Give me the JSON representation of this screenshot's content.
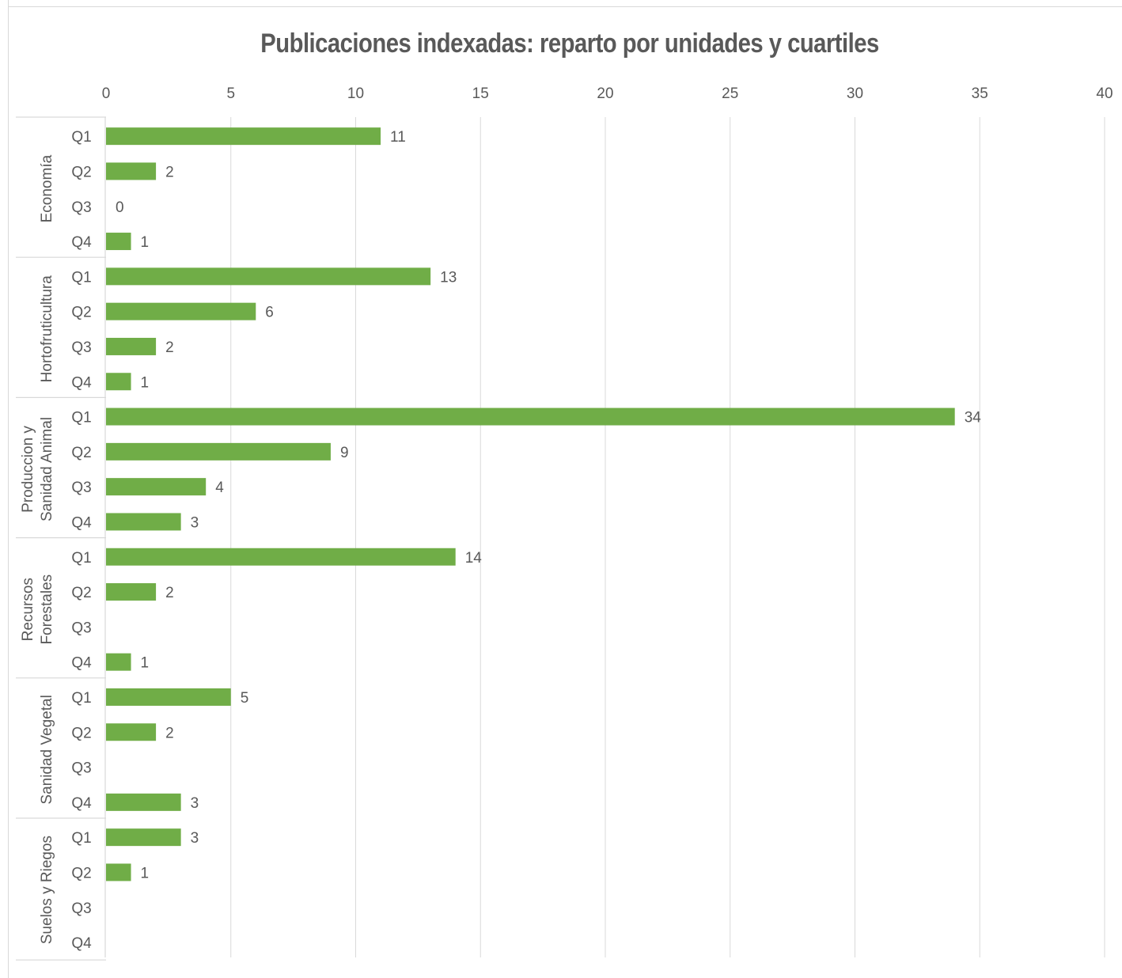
{
  "chart_data": {
    "type": "bar",
    "orientation": "horizontal",
    "title": "Publicaciones indexadas: reparto por unidades y cuartiles",
    "xlim": [
      0,
      40
    ],
    "x_ticks": [
      0,
      5,
      10,
      15,
      20,
      25,
      30,
      35,
      40
    ],
    "x_axis_position": "top",
    "grid": true,
    "legend": "none",
    "bar_color": "#70ad47",
    "groups": [
      {
        "name": "Economía",
        "label_lines": [
          "Economía"
        ],
        "categories": [
          "Q1",
          "Q2",
          "Q3",
          "Q4"
        ],
        "values": [
          11,
          2,
          0,
          1
        ],
        "labels": [
          "11",
          "2",
          "0",
          "1"
        ]
      },
      {
        "name": "Hortofruticultura",
        "label_lines": [
          "Hortofruticultura"
        ],
        "categories": [
          "Q1",
          "Q2",
          "Q3",
          "Q4"
        ],
        "values": [
          13,
          6,
          2,
          1
        ],
        "labels": [
          "13",
          "6",
          "2",
          "1"
        ]
      },
      {
        "name": "Produccion y Sanidad Animal",
        "label_lines": [
          "Produccion y",
          "Sanidad Animal"
        ],
        "categories": [
          "Q1",
          "Q2",
          "Q3",
          "Q4"
        ],
        "values": [
          34,
          9,
          4,
          3
        ],
        "labels": [
          "34",
          "9",
          "4",
          "3"
        ]
      },
      {
        "name": "Recursos Forestales",
        "label_lines": [
          "Recursos",
          "Forestales"
        ],
        "categories": [
          "Q1",
          "Q2",
          "Q3",
          "Q4"
        ],
        "values": [
          14,
          2,
          null,
          1
        ],
        "labels": [
          "14",
          "2",
          "",
          "1"
        ]
      },
      {
        "name": "Sanidad Vegetal",
        "label_lines": [
          "Sanidad Vegetal"
        ],
        "categories": [
          "Q1",
          "Q2",
          "Q3",
          "Q4"
        ],
        "values": [
          5,
          2,
          null,
          3
        ],
        "labels": [
          "5",
          "2",
          "",
          "3"
        ]
      },
      {
        "name": "Suelos y Riegos",
        "label_lines": [
          "Suelos y Riegos"
        ],
        "categories": [
          "Q1",
          "Q2",
          "Q3",
          "Q4"
        ],
        "values": [
          3,
          1,
          null,
          null
        ],
        "labels": [
          "3",
          "1",
          "",
          ""
        ]
      }
    ]
  }
}
